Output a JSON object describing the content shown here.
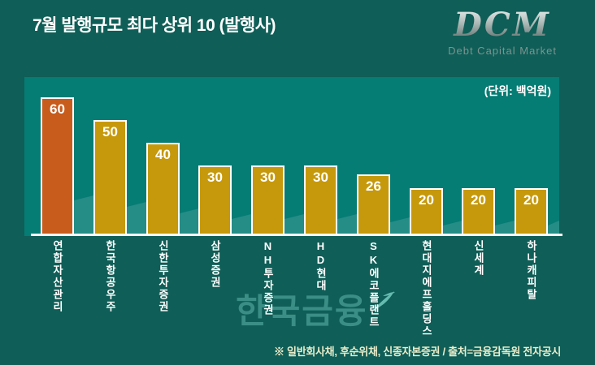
{
  "header": {
    "title": "7월 발행규모 최다 상위 10 (발행사)",
    "logo_text": "DCM",
    "logo_subtitle": "Debt Capital Market"
  },
  "chart_data": {
    "type": "bar",
    "title": "7월 발행규모 최다 상위 10 (발행사)",
    "unit_label": "(단위: 백억원)",
    "categories": [
      "연합자산관리",
      "한국항공우주",
      "신한투자증권",
      "삼성증권",
      "NH투자증권",
      "HD현대",
      "SK에코플랜트",
      "현대지에프홀딩스",
      "신세계",
      "하나캐피탈"
    ],
    "values": [
      60,
      50,
      40,
      30,
      30,
      30,
      26,
      20,
      20,
      20
    ],
    "ylim": [
      0,
      70
    ],
    "grid": false,
    "legend": false,
    "value_labels_shown": true,
    "highlight_index": 0,
    "highlight_color": "#c75c1d",
    "bar_color": "#c6990c",
    "bar_border_color": "#ffffff",
    "value_label_color": "#ffffff",
    "category_label_color": "#ffffff"
  },
  "watermark": {
    "text": "한국금융",
    "icon": "wave-swoosh-icon"
  },
  "footer": {
    "note": "※ 일반회사채, 후순위채, 신종자본증권 / 출처=금융감독원 전자공시"
  },
  "colors": {
    "background": "#0f5e57",
    "plot_background": "#057c74",
    "axis_line": "#ffffff",
    "title_text": "#ffffff",
    "footer_text": "#e9edcb",
    "watermark": "#3a8e85",
    "logo_subtitle": "#7c9390"
  }
}
